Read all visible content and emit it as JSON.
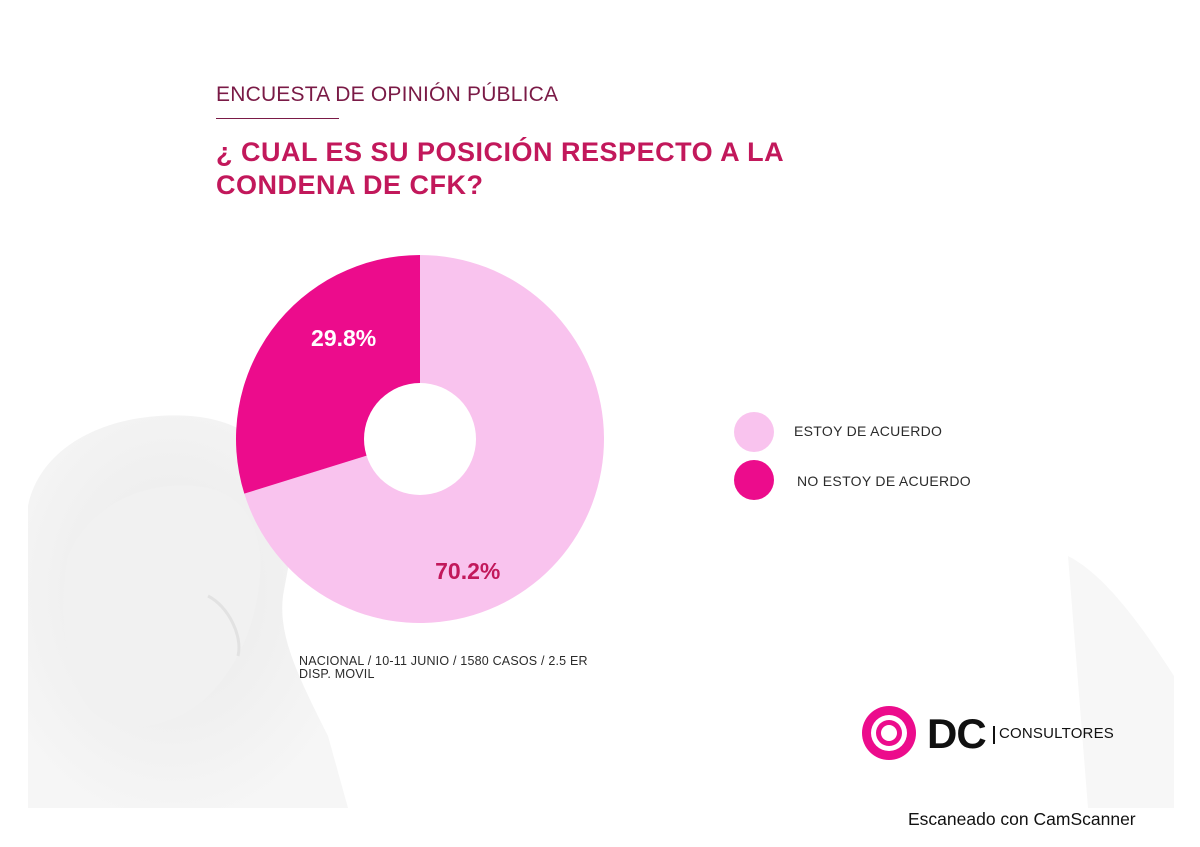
{
  "header": {
    "eyebrow": "ENCUESTA DE OPINIÓN PÚBLICA",
    "question_line1": "¿ CUAL ES SU POSICIÓN RESPECTO A LA",
    "question_line2": "CONDENA DE CFK?"
  },
  "chart_data": {
    "type": "pie",
    "donut": true,
    "categories": [
      "ESTOY DE ACUERDO",
      "NO ESTOY DE ACUERDO"
    ],
    "values": [
      70.2,
      29.8
    ],
    "value_labels": [
      "70.2%",
      "29.8%"
    ],
    "colors": [
      "#f9c3ee",
      "#ec0c8c"
    ],
    "label_colors": [
      "#c2185b",
      "#ffffff"
    ],
    "legend_position": "right"
  },
  "legend": {
    "items": [
      {
        "label": "ESTOY DE ACUERDO",
        "color": "#f9c3ee"
      },
      {
        "label": "NO ESTOY DE ACUERDO",
        "color": "#ec0c8c"
      }
    ]
  },
  "footnote": {
    "line1": "NACIONAL / 10-11 JUNIO / 1580 CASOS / 2.5 ER",
    "line2": "DISP. MOVIL"
  },
  "logo": {
    "letters": "DC",
    "word": "CONSULTORES",
    "ring_color": "#ec0c8c",
    "inner_ring_color": "#ec0c8c"
  },
  "scanner_note": "Escaneado con CamScanner"
}
